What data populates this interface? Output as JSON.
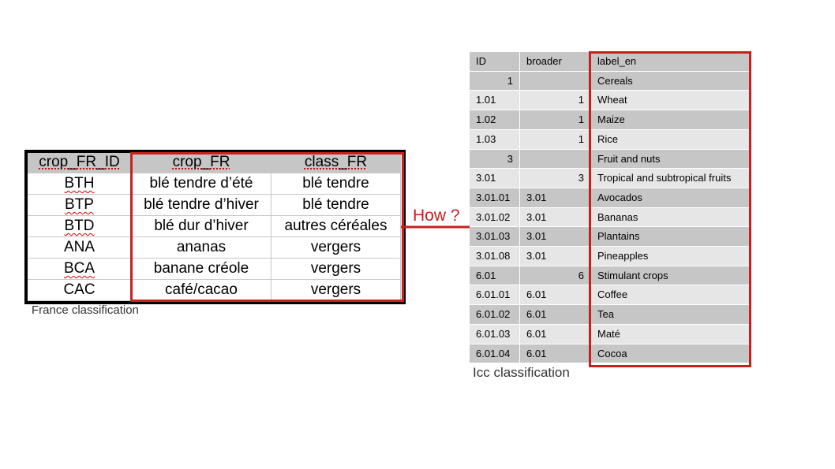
{
  "france": {
    "caption": "France classification",
    "headers": [
      "crop_FR_ID",
      "crop_FR",
      "class_FR"
    ],
    "rows": [
      [
        "BTH",
        "blé tendre d’été",
        "blé tendre"
      ],
      [
        "BTP",
        "blé tendre d’hiver",
        "blé tendre"
      ],
      [
        "BTD",
        "blé dur d’hiver",
        "autres céréales"
      ],
      [
        "ANA",
        "ananas",
        "vergers"
      ],
      [
        "BCA",
        "banane créole",
        "vergers"
      ],
      [
        "CAC",
        "café/cacao",
        "vergers"
      ]
    ]
  },
  "arrow": {
    "label": "How ?",
    "color": "#c8201e"
  },
  "icc": {
    "caption": "Icc classification",
    "headers": [
      "ID",
      "broader",
      "label_en"
    ],
    "rows": [
      [
        "1",
        "",
        "Cereals"
      ],
      [
        "1.01",
        "1",
        "Wheat"
      ],
      [
        "1.02",
        "1",
        "Maize"
      ],
      [
        "1.03",
        "1",
        "Rice"
      ],
      [
        "3",
        "",
        "Fruit and nuts"
      ],
      [
        "3.01",
        "3",
        "Tropical and subtropical fruits"
      ],
      [
        "3.01.01",
        "3.01",
        "Avocados"
      ],
      [
        "3.01.02",
        "3.01",
        "Bananas"
      ],
      [
        "3.01.03",
        "3.01",
        "Plantains"
      ],
      [
        "3.01.08",
        "3.01",
        "Pineapples"
      ],
      [
        "6.01",
        "6",
        "Stimulant crops"
      ],
      [
        "6.01.01",
        "6.01",
        "Coffee"
      ],
      [
        "6.01.02",
        "6.01",
        "Tea"
      ],
      [
        "6.01.03",
        "6.01",
        "Maté"
      ],
      [
        "6.01.04",
        "6.01",
        "Cocoa"
      ]
    ]
  },
  "colors": {
    "highlight_red": "#c8201e",
    "header_gray": "#c6c6c6",
    "row_light": "#e6e6e6"
  }
}
